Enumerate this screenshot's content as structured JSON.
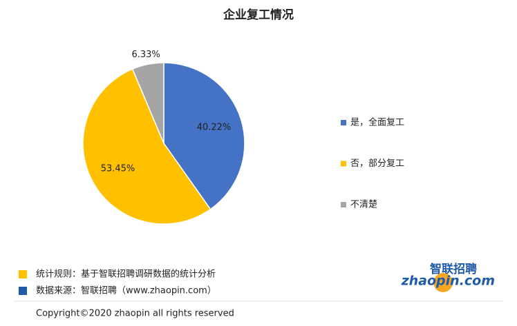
{
  "chart_data": {
    "type": "pie",
    "title": "企业复工情况",
    "categories": [
      "是，全面复工",
      "否，部分复工",
      "不清楚"
    ],
    "values": [
      40.22,
      53.45,
      6.33
    ],
    "value_labels": [
      "40.22%",
      "53.45%",
      "6.33%"
    ],
    "colors": [
      "#4472c4",
      "#ffc000",
      "#a5a5a5"
    ]
  },
  "notes": [
    {
      "text": "统计规则：基于智联招聘调研数据的统计分析",
      "color": "#ffc000"
    },
    {
      "text": "数据来源：智联招聘（www.zhaopin.com）",
      "color": "#1f5ba8"
    }
  ],
  "copyright": "Copyright©2020 zhaopin all rights reserved",
  "logo": {
    "cn": "智联招聘",
    "en": "zhaopin.com"
  }
}
